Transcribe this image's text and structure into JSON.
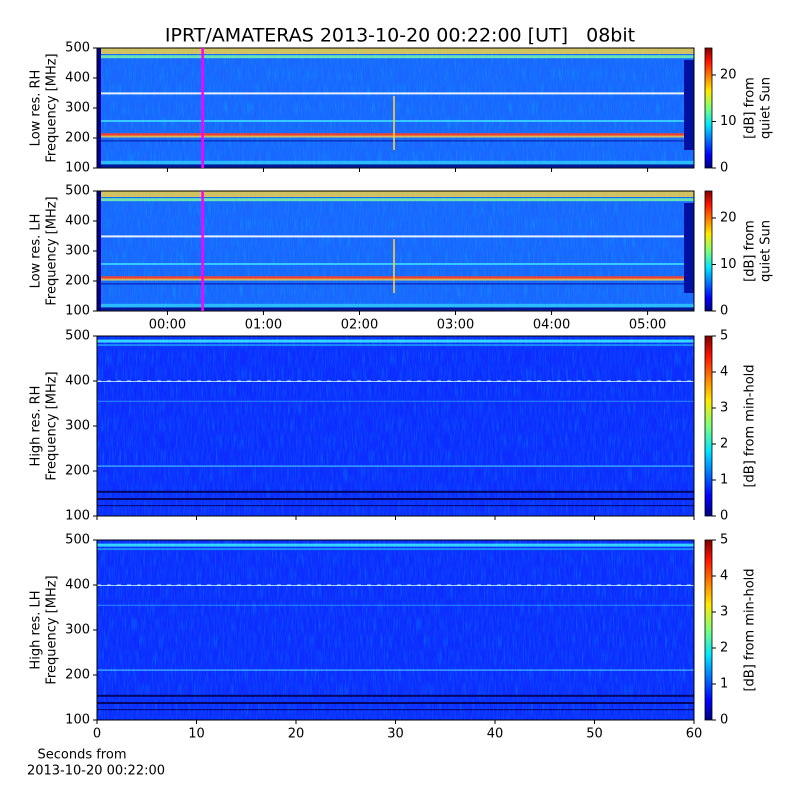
{
  "chart_data": [
    {
      "type": "heatmap",
      "title": "IPRT/AMATERAS 2013-10-20 00:22:00 [UT]   08bit",
      "ylabel": [
        "Low res. RH",
        "Frequency [MHz]"
      ],
      "xlim": [
        -44,
        329
      ],
      "ylim": [
        100,
        500
      ],
      "yticks": [
        100,
        200,
        300,
        400,
        500
      ],
      "colormap": "jet",
      "clim": [
        0,
        25.8
      ],
      "cticks": [
        0,
        10,
        20
      ],
      "colorbar_label": [
        "[dB] from",
        "quiet Sun"
      ],
      "marker_x": 22,
      "marker_color": "#ff00ff"
    },
    {
      "type": "heatmap",
      "ylabel": [
        "Low res. LH",
        "Frequency [MHz]"
      ],
      "xlim": [
        -44,
        329
      ],
      "ylim": [
        100,
        500
      ],
      "yticks": [
        100,
        200,
        300,
        400,
        500
      ],
      "xticks": [
        {
          "value": 0,
          "label": "00:00"
        },
        {
          "value": 60,
          "label": "01:00"
        },
        {
          "value": 120,
          "label": "02:00"
        },
        {
          "value": 180,
          "label": "03:00"
        },
        {
          "value": 240,
          "label": "04:00"
        },
        {
          "value": 300,
          "label": "05:00"
        }
      ],
      "colormap": "jet",
      "clim": [
        0,
        25.8
      ],
      "cticks": [
        0,
        10,
        20
      ],
      "colorbar_label": [
        "[dB] from",
        "quiet Sun"
      ],
      "marker_x": 22,
      "marker_color": "#ff00ff"
    },
    {
      "type": "heatmap",
      "ylabel": [
        "High res. RH",
        "Frequency [MHz]"
      ],
      "xlim": [
        0,
        60
      ],
      "ylim": [
        100,
        500
      ],
      "yticks": [
        100,
        200,
        300,
        400,
        500
      ],
      "colormap": "jet",
      "clim": [
        0,
        5
      ],
      "cticks": [
        0,
        1,
        2,
        3,
        4,
        5
      ],
      "colorbar_label": [
        "[dB] from min-hold"
      ]
    },
    {
      "type": "heatmap",
      "ylabel": [
        "High res. LH",
        "Frequency [MHz]"
      ],
      "xlim": [
        0,
        60
      ],
      "ylim": [
        100,
        500
      ],
      "yticks": [
        100,
        200,
        300,
        400,
        500
      ],
      "xticks": [
        0,
        10,
        20,
        30,
        40,
        50,
        60
      ],
      "xlabel": [
        "Seconds from",
        "2013-10-20 00:22:00"
      ],
      "colormap": "jet",
      "clim": [
        0,
        5
      ],
      "cticks": [
        0,
        1,
        2,
        3,
        4,
        5
      ],
      "colorbar_label": [
        "[dB] from min-hold"
      ]
    }
  ]
}
